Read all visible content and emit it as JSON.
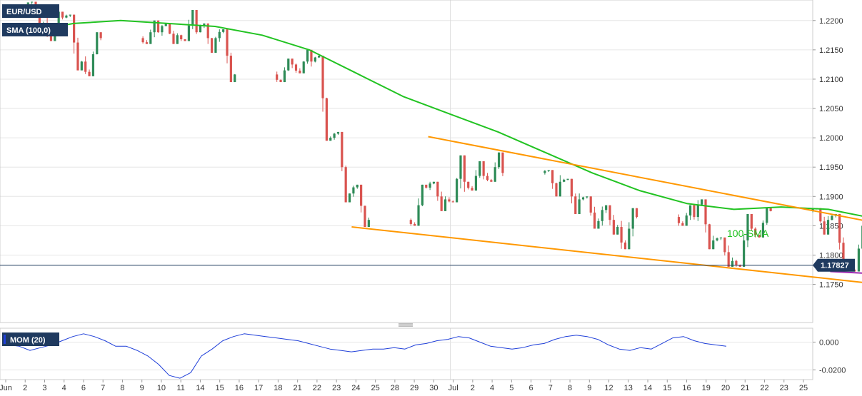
{
  "chart_data": [
    {
      "type": "candlestick",
      "symbol_label": "EUR/USD",
      "indicator_label": "SMA (100,0)",
      "price_axis": {
        "ticks": [
          "1.2200",
          "1.2150",
          "1.2100",
          "1.2050",
          "1.2000",
          "1.1950",
          "1.1900",
          "1.1850",
          "1.1800",
          "1.1750"
        ],
        "range": [
          1.1685,
          1.2235
        ]
      },
      "last_price": 1.17827,
      "last_price_label": "1.17827",
      "x_labels": [
        "Jun",
        "2",
        "3",
        "4",
        "6",
        "7",
        "8",
        "9",
        "10",
        "11",
        "14",
        "15",
        "16",
        "17",
        "18",
        "21",
        "22",
        "23",
        "24",
        "25",
        "28",
        "29",
        "30",
        "Jul",
        "2",
        "4",
        "5",
        "6",
        "7",
        "8",
        "9",
        "12",
        "13",
        "14",
        "15",
        "16",
        "19",
        "20",
        "21",
        "22",
        "23",
        "25"
      ],
      "colors": {
        "up": "#2e8b57",
        "down": "#d9534f",
        "sma": "#22c322",
        "channel": "#ff9800",
        "support": "#9c27b0",
        "last_price_line": "#1f3a5f",
        "badge_bg": "#1f3a5f",
        "label_bg": "#1f3a5f"
      },
      "annotation": {
        "text": "100-SMA",
        "color": "#22c322"
      },
      "candles": [
        {
          "day": "2021-06-01",
          "o": 1.2228,
          "h": 1.2232,
          "l": 1.218,
          "c": 1.2195
        },
        {
          "day": "2021-06-02",
          "o": 1.2195,
          "h": 1.2215,
          "l": 1.2165,
          "c": 1.2205
        },
        {
          "day": "2021-06-03",
          "o": 1.2205,
          "h": 1.221,
          "l": 1.2115,
          "c": 1.213
        },
        {
          "day": "2021-06-04",
          "o": 1.213,
          "h": 1.218,
          "l": 1.2105,
          "c": 1.217
        },
        {
          "day": "2021-06-07",
          "o": 1.217,
          "h": 1.22,
          "l": 1.216,
          "c": 1.218
        },
        {
          "day": "2021-06-08",
          "o": 1.218,
          "h": 1.2195,
          "l": 1.216,
          "c": 1.2175
        },
        {
          "day": "2021-06-09",
          "o": 1.2175,
          "h": 1.2218,
          "l": 1.2165,
          "c": 1.218
        },
        {
          "day": "2021-06-10",
          "o": 1.218,
          "h": 1.2195,
          "l": 1.2145,
          "c": 1.217
        },
        {
          "day": "2021-06-11",
          "o": 1.217,
          "h": 1.2185,
          "l": 1.2095,
          "c": 1.2108
        },
        {
          "day": "2021-06-14",
          "o": 1.2108,
          "h": 1.2135,
          "l": 1.2095,
          "c": 1.2125
        },
        {
          "day": "2021-06-15",
          "o": 1.2125,
          "h": 1.215,
          "l": 1.211,
          "c": 1.213
        },
        {
          "day": "2021-06-16",
          "o": 1.213,
          "h": 1.214,
          "l": 1.1995,
          "c": 1.2
        },
        {
          "day": "2021-06-17",
          "o": 1.2,
          "h": 1.201,
          "l": 1.189,
          "c": 1.1905
        },
        {
          "day": "2021-06-18",
          "o": 1.1905,
          "h": 1.192,
          "l": 1.1848,
          "c": 1.186
        },
        {
          "day": "2021-06-21",
          "o": 1.186,
          "h": 1.192,
          "l": 1.185,
          "c": 1.1915
        },
        {
          "day": "2021-06-22",
          "o": 1.1915,
          "h": 1.1925,
          "l": 1.1875,
          "c": 1.1895
        },
        {
          "day": "2021-06-23",
          "o": 1.1895,
          "h": 1.197,
          "l": 1.189,
          "c": 1.1925
        },
        {
          "day": "2021-06-24",
          "o": 1.1925,
          "h": 1.196,
          "l": 1.191,
          "c": 1.1935
        },
        {
          "day": "2021-06-25",
          "o": 1.1935,
          "h": 1.1975,
          "l": 1.1925,
          "c": 1.194
        },
        {
          "day": "2021-06-28",
          "o": 1.194,
          "h": 1.1945,
          "l": 1.19,
          "c": 1.1925
        },
        {
          "day": "2021-06-29",
          "o": 1.1925,
          "h": 1.193,
          "l": 1.187,
          "c": 1.1895
        },
        {
          "day": "2021-06-30",
          "o": 1.1895,
          "h": 1.19,
          "l": 1.1845,
          "c": 1.1858
        },
        {
          "day": "2021-07-01",
          "o": 1.1858,
          "h": 1.1885,
          "l": 1.1835,
          "c": 1.1848
        },
        {
          "day": "2021-07-02",
          "o": 1.1848,
          "h": 1.188,
          "l": 1.181,
          "c": 1.1865
        },
        {
          "day": "2021-07-05",
          "o": 1.1865,
          "h": 1.1885,
          "l": 1.185,
          "c": 1.1865
        },
        {
          "day": "2021-07-06",
          "o": 1.1865,
          "h": 1.1895,
          "l": 1.181,
          "c": 1.1825
        },
        {
          "day": "2021-07-07",
          "o": 1.1825,
          "h": 1.183,
          "l": 1.178,
          "c": 1.179
        },
        {
          "day": "2021-07-08",
          "o": 1.179,
          "h": 1.187,
          "l": 1.178,
          "c": 1.1845
        },
        {
          "day": "2021-07-09",
          "o": 1.1845,
          "h": 1.188,
          "l": 1.183,
          "c": 1.1875
        },
        {
          "day": "2021-07-12",
          "o": 1.1875,
          "h": 1.188,
          "l": 1.1835,
          "c": 1.186
        },
        {
          "day": "2021-07-13",
          "o": 1.186,
          "h": 1.187,
          "l": 1.1772,
          "c": 1.1778
        },
        {
          "day": "2021-07-14",
          "o": 1.1778,
          "h": 1.185,
          "l": 1.1772,
          "c": 1.1838
        },
        {
          "day": "2021-07-15",
          "o": 1.1838,
          "h": 1.185,
          "l": 1.1795,
          "c": 1.181
        },
        {
          "day": "2021-07-16",
          "o": 1.181,
          "h": 1.1822,
          "l": 1.179,
          "c": 1.1805
        },
        {
          "day": "2021-07-19",
          "o": 1.1805,
          "h": 1.1825,
          "l": 1.1765,
          "c": 1.178
        },
        {
          "day": "2021-07-20",
          "o": 1.178,
          "h": 1.1795,
          "l": 1.1755,
          "c": 1.1783
        }
      ],
      "sma_100": [
        1.218,
        1.2195,
        1.22,
        1.2195,
        1.219,
        1.2175,
        1.215,
        1.211,
        1.207,
        1.204,
        1.201,
        1.1975,
        1.194,
        1.191,
        1.1888,
        1.1878,
        1.1882,
        1.1878,
        1.1862,
        1.185,
        1.184
      ],
      "channel_top": [
        {
          "day": "2021-06-22",
          "price": 1.2002
        },
        {
          "day": "2021-07-21",
          "price": 1.1818
        }
      ],
      "channel_bottom": [
        {
          "day": "2021-06-18",
          "price": 1.1848
        },
        {
          "day": "2021-07-21",
          "price": 1.173
        }
      ],
      "support_line": [
        {
          "day": "2021-07-13",
          "price": 1.1772
        },
        {
          "day": "2021-07-21",
          "price": 1.1758
        }
      ]
    },
    {
      "type": "line",
      "indicator_label": "MOM (20)",
      "y_ticks": [
        "0.000",
        "-0.0200"
      ],
      "range": [
        -0.027,
        0.01
      ],
      "color": "#1f3fd9",
      "values": [
        -0.002,
        -0.003,
        -0.006,
        -0.004,
        -0.002,
        0.001,
        0.004,
        0.006,
        0.004,
        0.001,
        -0.003,
        -0.003,
        -0.006,
        -0.01,
        -0.016,
        -0.024,
        -0.026,
        -0.022,
        -0.01,
        -0.005,
        0.001,
        0.004,
        0.006,
        0.005,
        0.004,
        0.003,
        0.002,
        0.001,
        -0.001,
        -0.003,
        -0.005,
        -0.006,
        -0.007,
        -0.006,
        -0.005,
        -0.005,
        -0.004,
        -0.005,
        -0.002,
        -0.001,
        0.001,
        0.002,
        0.004,
        0.003,
        0.0,
        -0.003,
        -0.004,
        -0.005,
        -0.004,
        -0.002,
        -0.001,
        0.002,
        0.004,
        0.005,
        0.004,
        0.002,
        -0.002,
        -0.005,
        -0.006,
        -0.004,
        -0.005,
        -0.001,
        0.003,
        0.004,
        0.001,
        -0.001,
        -0.002,
        -0.003
      ]
    }
  ]
}
